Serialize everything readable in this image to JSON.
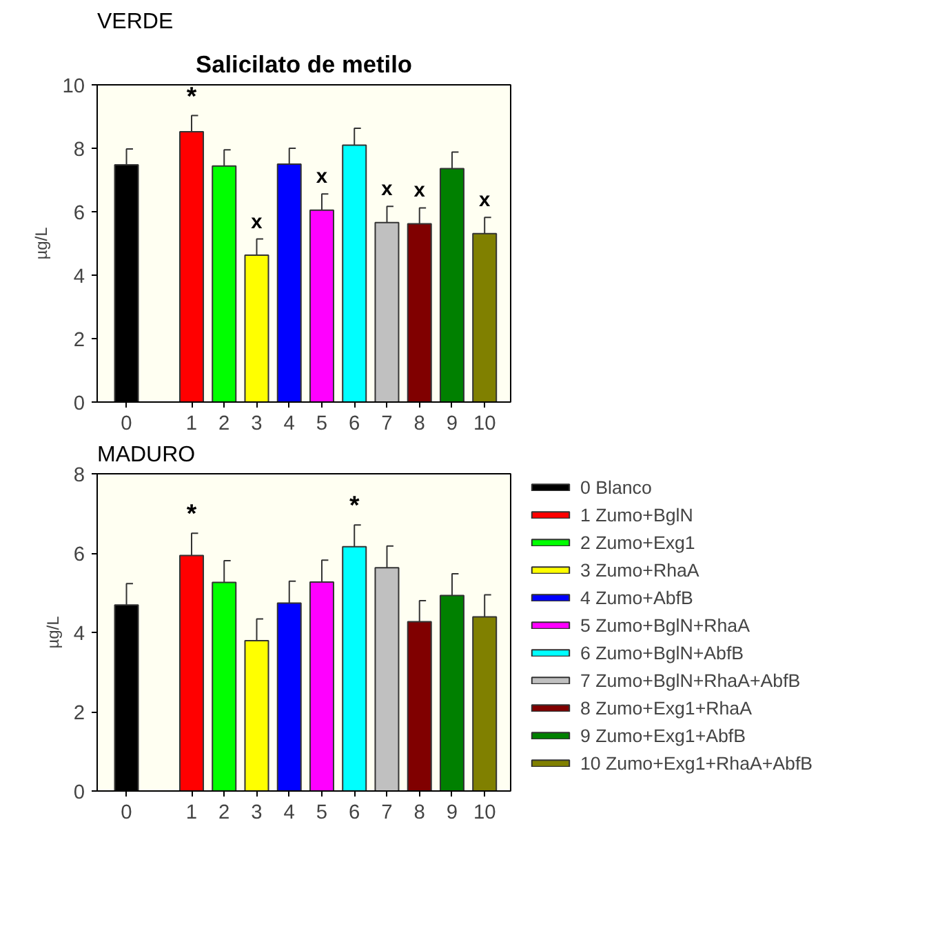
{
  "chart_data": [
    {
      "type": "bar",
      "title": "Salicilato de metilo",
      "subtitle": "VERDE",
      "ylabel": "µg/L",
      "categories": [
        "0",
        "1",
        "2",
        "3",
        "4",
        "5",
        "6",
        "7",
        "8",
        "9",
        "10"
      ],
      "ylim": [
        0,
        10
      ],
      "yticks": [
        0,
        2,
        4,
        6,
        8,
        10
      ],
      "grid": false,
      "legend": false,
      "series": [
        {
          "color": "#000000",
          "values": [
            7.48,
            null,
            null,
            null,
            null,
            null,
            null,
            null,
            null,
            null,
            null
          ],
          "errors": [
            [
              7.48,
              7.98
            ],
            null,
            null,
            null,
            null,
            null,
            null,
            null,
            null,
            null,
            null
          ]
        },
        {
          "color": "#ff0000",
          "values": [
            null,
            8.52,
            null,
            null,
            null,
            null,
            null,
            null,
            null,
            null,
            null
          ],
          "errors": [
            null,
            [
              8.52,
              9.03
            ],
            null,
            null,
            null,
            null,
            null,
            null,
            null,
            null,
            null
          ]
        },
        {
          "color": "#00ff00",
          "values": [
            null,
            null,
            7.44,
            null,
            null,
            null,
            null,
            null,
            null,
            null,
            null
          ],
          "errors": [
            null,
            null,
            [
              7.44,
              7.95
            ],
            null,
            null,
            null,
            null,
            null,
            null,
            null,
            null
          ]
        },
        {
          "color": "#ffff00",
          "values": [
            null,
            null,
            null,
            4.63,
            null,
            null,
            null,
            null,
            null,
            null,
            null
          ],
          "errors": [
            null,
            null,
            null,
            [
              4.63,
              5.14
            ],
            null,
            null,
            null,
            null,
            null,
            null,
            null
          ]
        },
        {
          "color": "#0000ff",
          "values": [
            null,
            null,
            null,
            null,
            7.5,
            null,
            null,
            null,
            null,
            null,
            null
          ],
          "errors": [
            null,
            null,
            null,
            null,
            [
              7.5,
              8.0
            ],
            null,
            null,
            null,
            null,
            null,
            null
          ]
        },
        {
          "color": "#ff00ff",
          "values": [
            null,
            null,
            null,
            null,
            null,
            6.05,
            null,
            null,
            null,
            null,
            null
          ],
          "errors": [
            null,
            null,
            null,
            null,
            null,
            [
              6.05,
              6.56
            ],
            null,
            null,
            null,
            null,
            null
          ]
        },
        {
          "color": "#00ffff",
          "values": [
            null,
            null,
            null,
            null,
            null,
            null,
            8.1,
            null,
            null,
            null,
            null
          ],
          "errors": [
            null,
            null,
            null,
            null,
            null,
            null,
            [
              8.1,
              8.63
            ],
            null,
            null,
            null,
            null
          ]
        },
        {
          "color": "#c0c0c0",
          "values": [
            null,
            null,
            null,
            null,
            null,
            null,
            null,
            5.66,
            null,
            null,
            null
          ],
          "errors": [
            null,
            null,
            null,
            null,
            null,
            null,
            null,
            [
              5.66,
              6.17
            ],
            null,
            null,
            null
          ]
        },
        {
          "color": "#800000",
          "values": [
            null,
            null,
            null,
            null,
            null,
            null,
            null,
            null,
            5.62,
            null,
            null
          ],
          "errors": [
            null,
            null,
            null,
            null,
            null,
            null,
            null,
            null,
            [
              5.62,
              6.12
            ],
            null,
            null
          ]
        },
        {
          "color": "#008000",
          "values": [
            null,
            null,
            null,
            null,
            null,
            null,
            null,
            null,
            null,
            7.36,
            null
          ],
          "errors": [
            null,
            null,
            null,
            null,
            null,
            null,
            null,
            null,
            null,
            [
              7.36,
              7.88
            ],
            null
          ]
        },
        {
          "color": "#808000",
          "values": [
            null,
            null,
            null,
            null,
            null,
            null,
            null,
            null,
            null,
            null,
            5.31
          ],
          "errors": [
            null,
            null,
            null,
            null,
            null,
            null,
            null,
            null,
            null,
            null,
            [
              5.31,
              5.82
            ]
          ]
        }
      ],
      "annotations": [
        {
          "text": "*",
          "x": "1",
          "y": 8.52
        },
        {
          "text": "x",
          "x": "3",
          "y": 4.63
        },
        {
          "text": "x",
          "x": "5",
          "y": 6.05
        },
        {
          "text": "x",
          "x": "7",
          "y": 5.66
        },
        {
          "text": "x",
          "x": "8",
          "y": 5.62
        },
        {
          "text": "x",
          "x": "10",
          "y": 5.31
        }
      ]
    },
    {
      "type": "bar",
      "subtitle": "MADURO",
      "ylabel": "µg/L",
      "categories": [
        "0",
        "1",
        "2",
        "3",
        "4",
        "5",
        "6",
        "7",
        "8",
        "9",
        "10"
      ],
      "ylim": [
        0,
        8
      ],
      "yticks": [
        0,
        2,
        4,
        6,
        8
      ],
      "grid": false,
      "legend": "right",
      "series": [
        {
          "name": "0 Blanco",
          "color": "#000000",
          "values": [
            4.69,
            null,
            null,
            null,
            null,
            null,
            null,
            null,
            null,
            null,
            null
          ],
          "errors": [
            [
              4.69,
              5.23
            ],
            null,
            null,
            null,
            null,
            null,
            null,
            null,
            null,
            null,
            null
          ]
        },
        {
          "name": "1 Zumo+BglN",
          "color": "#ff0000",
          "values": [
            null,
            5.94,
            null,
            null,
            null,
            null,
            null,
            null,
            null,
            null,
            null
          ],
          "errors": [
            null,
            [
              5.94,
              6.5
            ],
            null,
            null,
            null,
            null,
            null,
            null,
            null,
            null,
            null
          ]
        },
        {
          "name": "2 Zumo+Exg1",
          "color": "#00ff00",
          "values": [
            null,
            null,
            5.26,
            null,
            null,
            null,
            null,
            null,
            null,
            null,
            null
          ],
          "errors": [
            null,
            null,
            [
              5.26,
              5.81
            ],
            null,
            null,
            null,
            null,
            null,
            null,
            null,
            null
          ]
        },
        {
          "name": "3 Zumo+RhaA",
          "color": "#ffff00",
          "values": [
            null,
            null,
            null,
            3.79,
            null,
            null,
            null,
            null,
            null,
            null,
            null
          ],
          "errors": [
            null,
            null,
            null,
            [
              3.79,
              4.34
            ],
            null,
            null,
            null,
            null,
            null,
            null,
            null
          ]
        },
        {
          "name": "4 Zumo+AbfB",
          "color": "#0000ff",
          "values": [
            null,
            null,
            null,
            null,
            4.74,
            null,
            null,
            null,
            null,
            null,
            null
          ],
          "errors": [
            null,
            null,
            null,
            null,
            [
              4.74,
              5.29
            ],
            null,
            null,
            null,
            null,
            null,
            null
          ]
        },
        {
          "name": "5 Zumo+BglN+RhaA",
          "color": "#ff00ff",
          "values": [
            null,
            null,
            null,
            null,
            null,
            5.27,
            null,
            null,
            null,
            null,
            null
          ],
          "errors": [
            null,
            null,
            null,
            null,
            null,
            [
              5.27,
              5.82
            ],
            null,
            null,
            null,
            null,
            null
          ]
        },
        {
          "name": "6 Zumo+BglN+AbfB",
          "color": "#00ffff",
          "values": [
            null,
            null,
            null,
            null,
            null,
            null,
            6.16,
            null,
            null,
            null,
            null
          ],
          "errors": [
            null,
            null,
            null,
            null,
            null,
            null,
            [
              6.16,
              6.71
            ],
            null,
            null,
            null,
            null
          ]
        },
        {
          "name": "7 Zumo+BglN+RhaA+AbfB",
          "color": "#c0c0c0",
          "values": [
            null,
            null,
            null,
            null,
            null,
            null,
            null,
            5.63,
            null,
            null,
            null
          ],
          "errors": [
            null,
            null,
            null,
            null,
            null,
            null,
            null,
            [
              5.63,
              6.18
            ],
            null,
            null,
            null
          ]
        },
        {
          "name": "8 Zumo+Exg1+RhaA",
          "color": "#800000",
          "values": [
            null,
            null,
            null,
            null,
            null,
            null,
            null,
            null,
            4.27,
            null,
            null
          ],
          "errors": [
            null,
            null,
            null,
            null,
            null,
            null,
            null,
            null,
            [
              4.27,
              4.8
            ],
            null,
            null
          ]
        },
        {
          "name": "9 Zumo+Exg1+AbfB",
          "color": "#008000",
          "values": [
            null,
            null,
            null,
            null,
            null,
            null,
            null,
            null,
            null,
            4.93,
            null
          ],
          "errors": [
            null,
            null,
            null,
            null,
            null,
            null,
            null,
            null,
            null,
            [
              4.93,
              5.48
            ],
            null
          ]
        },
        {
          "name": "10 Zumo+Exg1+RhaA+AbfB",
          "color": "#808000",
          "values": [
            null,
            null,
            null,
            null,
            null,
            null,
            null,
            null,
            null,
            null,
            4.39
          ],
          "errors": [
            null,
            null,
            null,
            null,
            null,
            null,
            null,
            null,
            null,
            null,
            [
              4.39,
              4.95
            ]
          ]
        }
      ],
      "annotations": [
        {
          "text": "*",
          "x": "1",
          "y": 5.94
        },
        {
          "text": "*",
          "x": "6",
          "y": 6.16
        }
      ]
    }
  ]
}
